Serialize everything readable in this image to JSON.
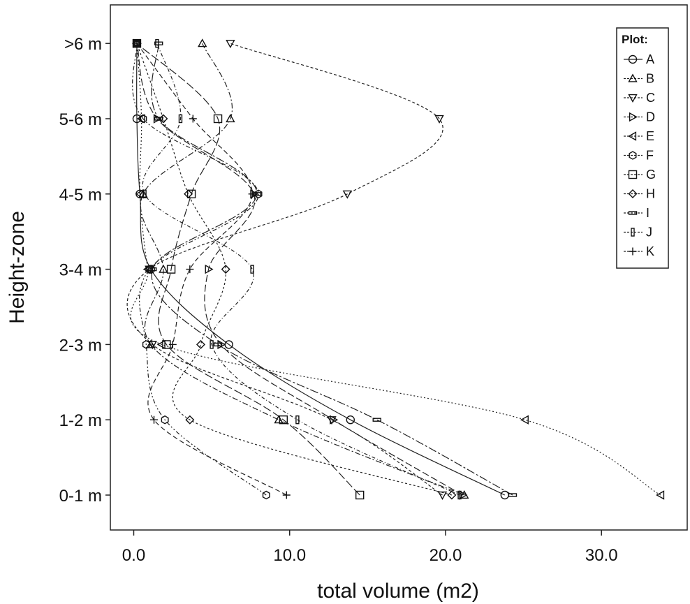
{
  "chart_data": {
    "type": "line",
    "xlabel": "total volume (m2)",
    "ylabel": "Height-zone",
    "xlim": [
      -1.5,
      35.5
    ],
    "x_ticks": [
      0,
      10,
      20,
      30
    ],
    "x_tick_labels": [
      "0.0",
      "10.0",
      "20.0",
      "30.0"
    ],
    "categories": [
      "0-1 m",
      "1-2 m",
      "2-3 m",
      "3-4 m",
      "4-5 m",
      "5-6 m",
      ">6 m"
    ],
    "legend": {
      "title": "Plot:",
      "position": "top-right"
    },
    "grid": false,
    "series": [
      {
        "name": "A",
        "marker": "circle",
        "dash": "",
        "values": [
          23.8,
          13.9,
          6.1,
          1.1,
          0.4,
          0.2,
          0.2
        ]
      },
      {
        "name": "B",
        "marker": "triangle-up",
        "dash": "8 3 2 3",
        "values": [
          21.2,
          9.3,
          1.1,
          1.9,
          0.6,
          6.2,
          4.4
        ]
      },
      {
        "name": "C",
        "marker": "triangle-down",
        "dash": "4 3",
        "values": [
          19.8,
          12.7,
          1.2,
          1.0,
          13.7,
          19.6,
          6.2
        ]
      },
      {
        "name": "D",
        "marker": "triangle-right",
        "dash": "10 4",
        "values": [
          21.1,
          12.8,
          5.6,
          4.8,
          7.7,
          1.5,
          0.2
        ]
      },
      {
        "name": "E",
        "marker": "triangle-left",
        "dash": "2 3",
        "values": [
          33.8,
          25.1,
          1.8,
          0.9,
          0.4,
          0.5,
          0.2
        ]
      },
      {
        "name": "F",
        "marker": "hexagon",
        "dash": "6 3 2 3 2 3",
        "values": [
          8.5,
          2.0,
          0.8,
          1.0,
          8.0,
          0.6,
          0.2
        ]
      },
      {
        "name": "G",
        "marker": "square",
        "dash": "12 4",
        "values": [
          14.5,
          9.6,
          2.1,
          2.4,
          3.7,
          5.4,
          0.2
        ]
      },
      {
        "name": "H",
        "marker": "diamond",
        "dash": "3 3",
        "values": [
          20.4,
          3.6,
          4.3,
          5.9,
          3.5,
          1.9,
          0.2
        ]
      },
      {
        "name": "I",
        "marker": "dash",
        "dash": "12 3 3 3",
        "values": [
          24.3,
          15.6,
          5.4,
          1.2,
          7.9,
          1.6,
          1.6
        ]
      },
      {
        "name": "J",
        "marker": "bar",
        "dash": "5 3 1 3",
        "values": [
          20.9,
          10.5,
          5.0,
          7.6,
          0.7,
          3.0,
          1.5
        ]
      },
      {
        "name": "K",
        "marker": "plus",
        "dash": "7 4",
        "values": [
          9.8,
          1.3,
          2.5,
          3.6,
          7.6,
          3.8,
          0.2
        ]
      }
    ]
  }
}
